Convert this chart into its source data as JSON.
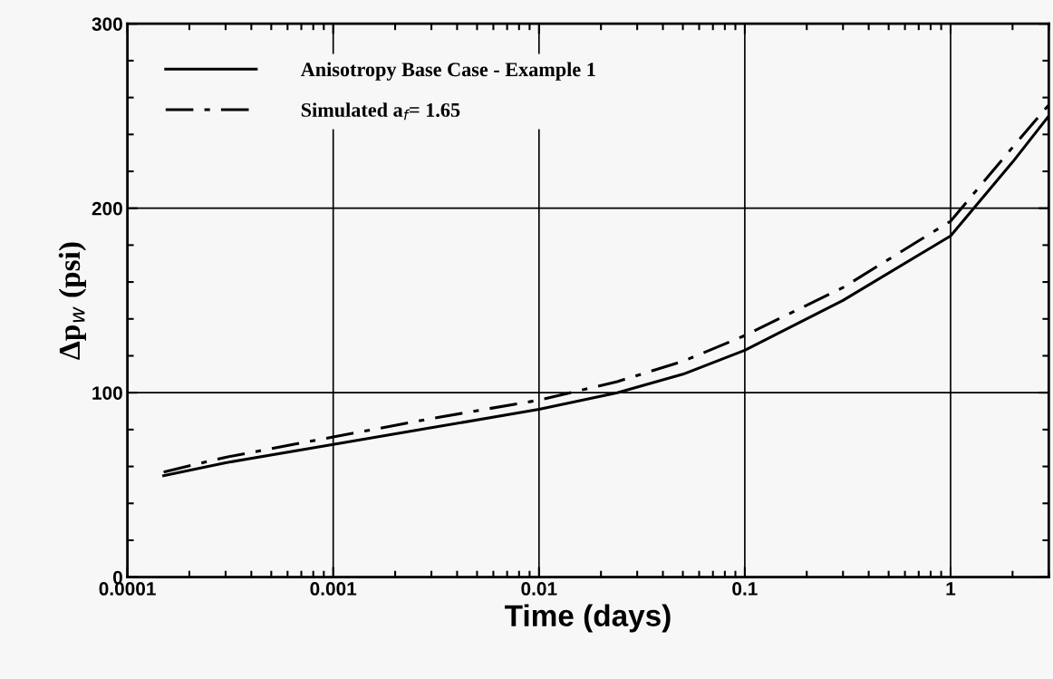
{
  "chart_data": {
    "type": "line",
    "xlabel": "Time (days)",
    "ylabel": "Δp$_{w}$ (psi)",
    "log": "x",
    "grid": true,
    "legend": "top left",
    "xlim": [
      0.0001,
      3
    ],
    "xticks": [
      0.0001,
      0.001,
      0.01,
      0.1,
      1
    ],
    "ylim": [
      0,
      300
    ],
    "yticks": [
      0,
      100,
      200,
      300
    ],
    "series": [
      {
        "name": "Anisotropy Base Case - Example 1",
        "color": "#000000",
        "line_style": "solid",
        "x": [
          0.00015,
          0.0003,
          0.001,
          0.003,
          0.01,
          0.024,
          0.05,
          0.1,
          0.3,
          1,
          2,
          3
        ],
        "values": [
          55,
          62,
          72,
          81,
          91,
          100,
          110,
          123,
          150,
          185,
          225,
          250
        ]
      },
      {
        "name": "Simulated a$_{f}$= 1.65",
        "color": "#000000",
        "line_style": "dashed",
        "x": [
          0.00015,
          0.0003,
          0.001,
          0.003,
          0.01,
          0.024,
          0.05,
          0.1,
          0.3,
          1,
          2,
          3
        ],
        "values": [
          57,
          65,
          76,
          86,
          96,
          106,
          117,
          131,
          157,
          193,
          233,
          256
        ]
      }
    ]
  }
}
